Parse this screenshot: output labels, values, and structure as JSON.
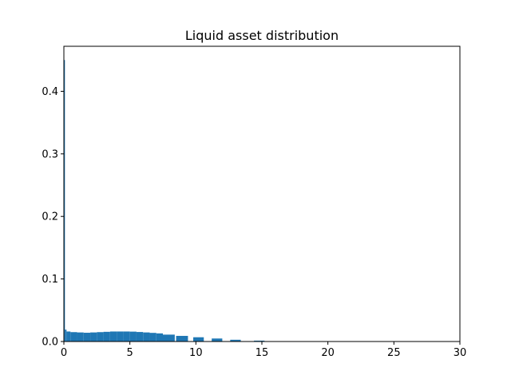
{
  "chart_data": {
    "type": "bar",
    "title": "Liquid asset distribution",
    "xlabel": "",
    "ylabel": "",
    "xlim": [
      0,
      30
    ],
    "ylim": [
      0,
      0.472
    ],
    "x_ticks": [
      "0",
      "5",
      "10",
      "15",
      "20",
      "25",
      "30"
    ],
    "y_ticks": [
      "0.0",
      "0.1",
      "0.2",
      "0.3",
      "0.4"
    ],
    "grid": false,
    "bar_color": "#1f77b4",
    "bars": [
      {
        "x0": 0.0,
        "x1": 0.08,
        "value": 0.45
      },
      {
        "x0": 0.08,
        "x1": 0.2,
        "value": 0.019
      },
      {
        "x0": 0.2,
        "x1": 0.5,
        "value": 0.016
      },
      {
        "x0": 0.5,
        "x1": 1.0,
        "value": 0.015
      },
      {
        "x0": 1.0,
        "x1": 1.5,
        "value": 0.0145
      },
      {
        "x0": 1.5,
        "x1": 2.0,
        "value": 0.014
      },
      {
        "x0": 2.0,
        "x1": 2.5,
        "value": 0.0145
      },
      {
        "x0": 2.5,
        "x1": 3.0,
        "value": 0.015
      },
      {
        "x0": 3.0,
        "x1": 3.5,
        "value": 0.0155
      },
      {
        "x0": 3.5,
        "x1": 4.0,
        "value": 0.016
      },
      {
        "x0": 4.0,
        "x1": 4.5,
        "value": 0.016
      },
      {
        "x0": 4.5,
        "x1": 5.0,
        "value": 0.016
      },
      {
        "x0": 5.0,
        "x1": 5.5,
        "value": 0.0158
      },
      {
        "x0": 5.5,
        "x1": 6.0,
        "value": 0.0152
      },
      {
        "x0": 6.0,
        "x1": 6.5,
        "value": 0.0145
      },
      {
        "x0": 6.5,
        "x1": 7.0,
        "value": 0.0138
      },
      {
        "x0": 7.0,
        "x1": 7.5,
        "value": 0.013
      },
      {
        "x0": 7.5,
        "x1": 8.4,
        "value": 0.011
      },
      {
        "x0": 8.5,
        "x1": 9.4,
        "value": 0.009
      },
      {
        "x0": 9.8,
        "x1": 10.6,
        "value": 0.0068
      },
      {
        "x0": 11.2,
        "x1": 12.0,
        "value": 0.0048
      },
      {
        "x0": 12.6,
        "x1": 13.4,
        "value": 0.0028
      },
      {
        "x0": 14.4,
        "x1": 15.2,
        "value": 0.0014
      },
      {
        "x0": 16.2,
        "x1": 16.8,
        "value": 0.0004
      }
    ]
  }
}
